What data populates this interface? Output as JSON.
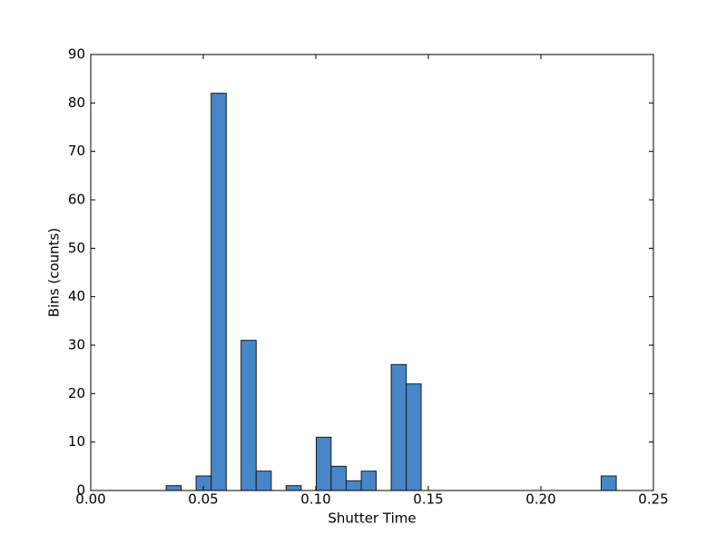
{
  "chart_data": {
    "type": "histogram",
    "xlabel": "Shutter Time",
    "ylabel": "Bins (counts)",
    "bins": [
      0.0335,
      0.0402,
      0.0468,
      0.0535,
      0.0602,
      0.0668,
      0.0735,
      0.0802,
      0.0868,
      0.0935,
      0.1002,
      0.1068,
      0.1135,
      0.1202,
      0.1268,
      0.1335,
      0.1402,
      0.1468,
      0.1535,
      0.1602,
      0.1668,
      0.1735,
      0.1802,
      0.1868,
      0.1935,
      0.2002,
      0.2068,
      0.2135,
      0.2202,
      0.2268,
      0.2335
    ],
    "values": [
      1,
      0,
      3,
      82,
      0,
      31,
      4,
      0,
      1,
      0,
      11,
      5,
      2,
      4,
      0,
      26,
      22,
      0,
      0,
      0,
      0,
      0,
      0,
      0,
      0,
      0,
      0,
      0,
      0,
      3
    ],
    "color": "#4787c9",
    "xlim": [
      0,
      0.25
    ],
    "xticks": [
      {
        "value": 0,
        "label": "0.00"
      },
      {
        "value": 0.05,
        "label": "0.05"
      },
      {
        "value": 0.1,
        "label": "0.10"
      },
      {
        "value": 0.15,
        "label": "0.15"
      },
      {
        "value": 0.2,
        "label": "0.20"
      },
      {
        "value": 0.25,
        "label": "0.25"
      }
    ],
    "ylim": [
      0,
      90
    ],
    "yticks": [
      0,
      10,
      20,
      30,
      40,
      50,
      60,
      70,
      80,
      90
    ]
  }
}
